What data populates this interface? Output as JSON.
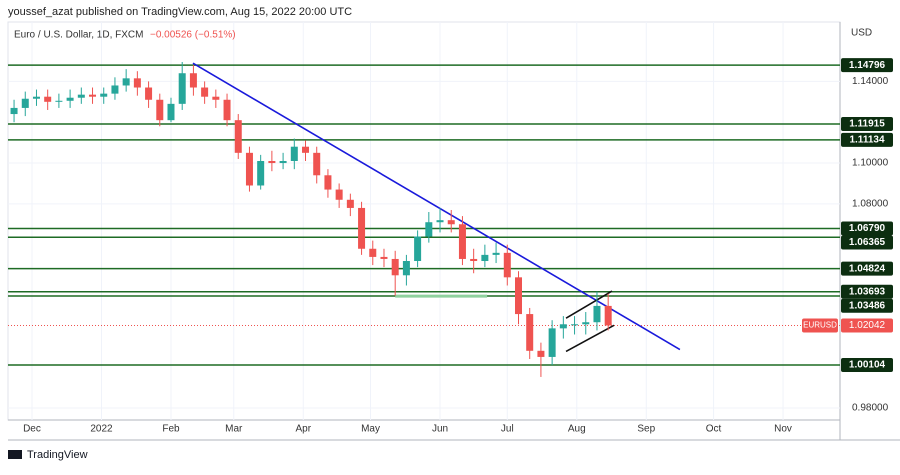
{
  "chart_data": {
    "type": "candlestick",
    "publisher": "youssef_azat published on TradingView.com, Aug 15, 2022 20:00 UTC",
    "title": "Euro / U.S. Dollar, 1D, FXCM",
    "change": "−0.00526 (−0.51%)",
    "currency": "USD",
    "brand": "TradingView",
    "up_color": "#26a69a",
    "down_color": "#ef5350",
    "level_color": "#1e6b24",
    "xlim": [
      -10.7,
      360.4
    ],
    "ylim": [
      0.9741,
      1.1691
    ],
    "xticks": [
      {
        "value": 0,
        "label": "Dec"
      },
      {
        "value": 31,
        "label": "2022"
      },
      {
        "value": 62,
        "label": "Feb"
      },
      {
        "value": 90,
        "label": "Mar"
      },
      {
        "value": 121,
        "label": "Apr"
      },
      {
        "value": 151,
        "label": "May"
      },
      {
        "value": 182,
        "label": "Jun"
      },
      {
        "value": 212,
        "label": "Jul"
      },
      {
        "value": 243,
        "label": "Aug"
      },
      {
        "value": 274,
        "label": "Sep"
      },
      {
        "value": 304,
        "label": "Oct"
      },
      {
        "value": 335,
        "label": "Nov"
      }
    ],
    "yticks": [
      {
        "value": 1.14,
        "label": "1.14000"
      },
      {
        "value": 1.1,
        "label": "1.10000"
      },
      {
        "value": 1.08,
        "label": "1.08000"
      },
      {
        "value": 0.98,
        "label": "0.98000"
      }
    ],
    "levels": [
      {
        "value": 1.14796,
        "label": "1.14796"
      },
      {
        "value": 1.11915,
        "label": "1.11915"
      },
      {
        "value": 1.11134,
        "label": "1.11134"
      },
      {
        "value": 1.0679,
        "label": "1.06790"
      },
      {
        "value": 1.06365,
        "label": "1.06365"
      },
      {
        "value": 1.04824,
        "label": "1.04824"
      },
      {
        "value": 1.03693,
        "label": "1.03693"
      },
      {
        "value": 1.03486,
        "label": "1.03486"
      },
      {
        "value": 1.00104,
        "label": "1.00104"
      }
    ],
    "last_price": {
      "name": "EURUSD",
      "value": 1.02042,
      "label": "1.02042",
      "color": "#ef5350"
    },
    "trendlines": [
      {
        "color": "#1a1adb",
        "x": [
          71.8,
          289
        ],
        "y": [
          1.1489,
          1.00864
        ]
      },
      {
        "color": "#111111",
        "x": [
          238.2,
          258.7
        ],
        "y": [
          1.024,
          1.0373
        ]
      },
      {
        "color": "#111111",
        "x": [
          238.2,
          259.6
        ],
        "y": [
          1.0077,
          1.0205
        ]
      },
      {
        "color": "#8fd19e",
        "x": [
          162,
          203
        ],
        "y": [
          1.0348,
          1.0348
        ]
      }
    ],
    "candles": {
      "x": [
        -8,
        -3,
        2,
        7,
        12,
        17,
        22,
        27,
        32,
        37,
        42,
        47,
        52,
        57,
        62,
        67,
        72,
        77,
        82,
        87,
        92,
        97,
        102,
        107,
        112,
        117,
        122,
        127,
        132,
        137,
        142,
        147,
        152,
        157,
        162,
        167,
        172,
        177,
        182,
        187,
        192,
        197,
        202,
        207,
        212,
        217,
        222,
        227,
        232,
        237,
        242,
        247,
        252,
        257
      ],
      "open": [
        1.124,
        1.127,
        1.1315,
        1.1325,
        1.13,
        1.1305,
        1.132,
        1.1335,
        1.1325,
        1.134,
        1.138,
        1.1415,
        1.137,
        1.131,
        1.121,
        1.129,
        1.144,
        1.137,
        1.1325,
        1.131,
        1.121,
        1.105,
        1.089,
        1.101,
        1.1,
        1.101,
        1.108,
        1.105,
        1.094,
        1.087,
        1.082,
        1.078,
        1.058,
        1.054,
        1.053,
        1.045,
        1.052,
        1.064,
        1.071,
        1.072,
        1.07,
        1.053,
        1.052,
        1.055,
        1.056,
        1.044,
        1.026,
        1.008,
        1.005,
        1.019,
        1.021,
        1.021,
        1.022,
        1.03
      ],
      "high": [
        1.131,
        1.135,
        1.136,
        1.136,
        1.134,
        1.136,
        1.137,
        1.137,
        1.137,
        1.142,
        1.146,
        1.145,
        1.14,
        1.134,
        1.132,
        1.1495,
        1.148,
        1.14,
        1.136,
        1.134,
        1.124,
        1.108,
        1.104,
        1.106,
        1.105,
        1.112,
        1.111,
        1.108,
        1.097,
        1.09,
        1.085,
        1.081,
        1.062,
        1.058,
        1.057,
        1.055,
        1.067,
        1.076,
        1.078,
        1.077,
        1.074,
        1.058,
        1.06,
        1.061,
        1.06,
        1.047,
        1.029,
        1.012,
        1.023,
        1.025,
        1.025,
        1.027,
        1.037,
        1.036
      ],
      "low": [
        1.12,
        1.123,
        1.128,
        1.126,
        1.127,
        1.127,
        1.129,
        1.129,
        1.129,
        1.131,
        1.135,
        1.133,
        1.127,
        1.118,
        1.12,
        1.126,
        1.133,
        1.129,
        1.127,
        1.118,
        1.102,
        1.086,
        1.087,
        1.096,
        1.097,
        1.097,
        1.101,
        1.09,
        1.083,
        1.078,
        1.074,
        1.055,
        1.05,
        1.049,
        1.035,
        1.04,
        1.049,
        1.061,
        1.066,
        1.066,
        1.05,
        1.046,
        1.049,
        1.051,
        1.04,
        1.021,
        1.004,
        0.9952,
        1.001,
        1.014,
        1.016,
        1.016,
        1.018,
        1.018
      ],
      "close": [
        1.127,
        1.1315,
        1.1325,
        1.13,
        1.1305,
        1.132,
        1.1335,
        1.1325,
        1.134,
        1.138,
        1.1415,
        1.137,
        1.131,
        1.121,
        1.129,
        1.144,
        1.137,
        1.1325,
        1.131,
        1.121,
        1.105,
        1.089,
        1.101,
        1.1,
        1.101,
        1.108,
        1.105,
        1.094,
        1.087,
        1.082,
        1.078,
        1.058,
        1.054,
        1.053,
        1.045,
        1.052,
        1.064,
        1.071,
        1.072,
        1.07,
        1.053,
        1.052,
        1.055,
        1.056,
        1.044,
        1.026,
        1.008,
        1.005,
        1.019,
        1.021,
        1.021,
        1.022,
        1.03,
        1.02042
      ]
    }
  }
}
